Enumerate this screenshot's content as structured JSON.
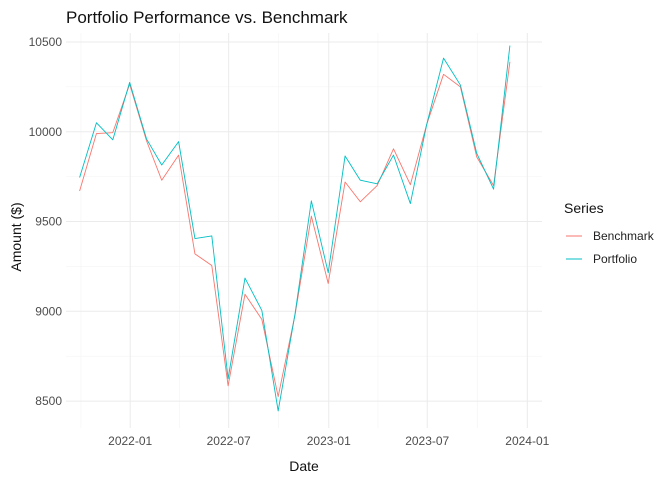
{
  "chart_data": {
    "type": "line",
    "title": "Portfolio Performance vs. Benchmark",
    "xlabel": "Date",
    "ylabel": "Amount ($)",
    "xlim": [
      "2021-09-05",
      "2024-01-28"
    ],
    "ylim": [
      8350,
      10550
    ],
    "x_ticks": [
      {
        "date": "2022-01-01",
        "label": "2022-01"
      },
      {
        "date": "2022-07-01",
        "label": "2022-07"
      },
      {
        "date": "2023-01-01",
        "label": "2023-01"
      },
      {
        "date": "2023-07-01",
        "label": "2023-07"
      },
      {
        "date": "2024-01-01",
        "label": "2024-01"
      }
    ],
    "y_ticks": [
      8500,
      9000,
      9500,
      10000,
      10500
    ],
    "x": [
      "2021-09-30",
      "2021-10-31",
      "2021-11-30",
      "2021-12-31",
      "2022-01-31",
      "2022-02-28",
      "2022-03-31",
      "2022-04-30",
      "2022-05-31",
      "2022-06-30",
      "2022-07-31",
      "2022-08-31",
      "2022-09-30",
      "2022-10-31",
      "2022-11-30",
      "2022-12-31",
      "2023-01-31",
      "2023-02-28",
      "2023-03-31",
      "2023-04-30",
      "2023-05-31",
      "2023-06-30",
      "2023-07-31",
      "2023-08-31",
      "2023-09-30",
      "2023-10-31",
      "2023-11-30"
    ],
    "series": [
      {
        "name": "Benchmark",
        "color": "#F8766D",
        "values": [
          9670,
          9990,
          9995,
          10265,
          9950,
          9730,
          9870,
          9320,
          9255,
          8585,
          9095,
          8955,
          8525,
          8980,
          9530,
          9155,
          9720,
          9610,
          9700,
          9905,
          9705,
          10040,
          10320,
          10250,
          9860,
          9700,
          10390
        ]
      },
      {
        "name": "Portfolio",
        "color": "#00BFC4",
        "values": [
          9745,
          10050,
          9955,
          10275,
          9960,
          9815,
          9945,
          9405,
          9420,
          8625,
          9185,
          9005,
          8445,
          8985,
          9615,
          9215,
          9865,
          9730,
          9710,
          9870,
          9600,
          10040,
          10410,
          10260,
          9880,
          9680,
          10480
        ]
      }
    ],
    "legend": {
      "title": "Series",
      "position": "right"
    },
    "grid": true
  }
}
